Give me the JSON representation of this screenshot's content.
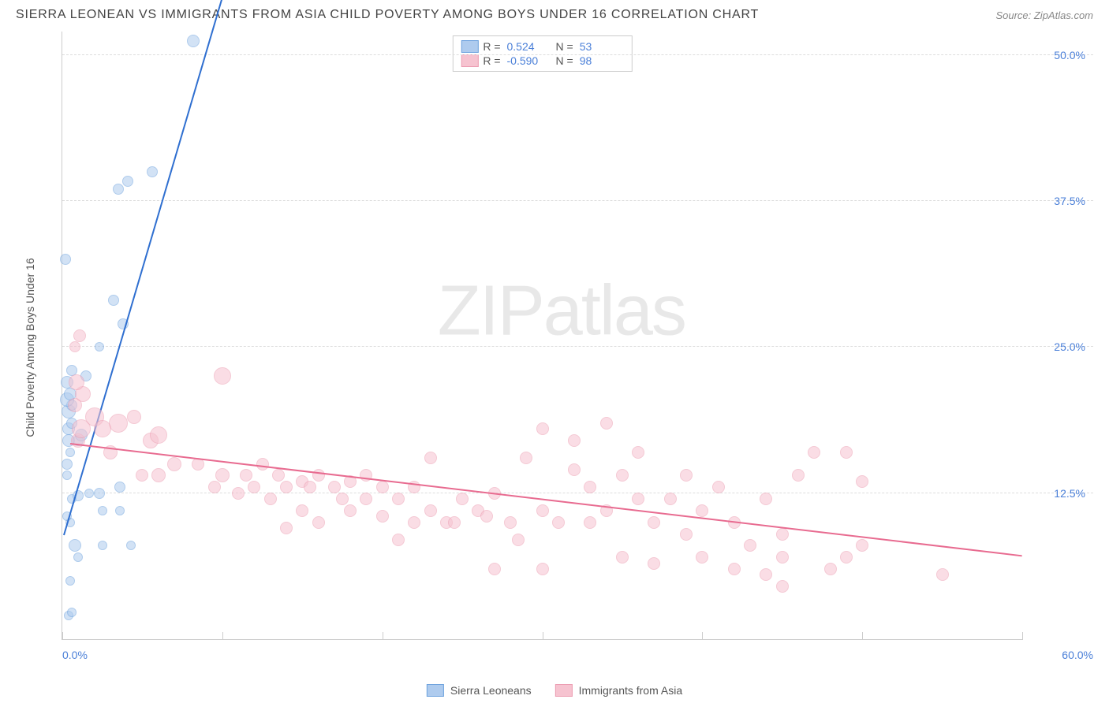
{
  "header": {
    "title": "SIERRA LEONEAN VS IMMIGRANTS FROM ASIA CHILD POVERTY AMONG BOYS UNDER 16 CORRELATION CHART",
    "source": "Source: ZipAtlas.com"
  },
  "watermark": {
    "zip": "ZIP",
    "atlas": "atlas"
  },
  "chart": {
    "type": "scatter",
    "y_axis_label": "Child Poverty Among Boys Under 16",
    "xlim": [
      0,
      60
    ],
    "ylim": [
      0,
      52
    ],
    "x_ticks": [
      0,
      10,
      20,
      30,
      40,
      50,
      60
    ],
    "y_ticks": [
      12.5,
      25.0,
      37.5,
      50.0
    ],
    "x_tick_labels": {
      "left": "0.0%",
      "right": "60.0%"
    },
    "y_tick_labels": [
      "12.5%",
      "25.0%",
      "37.5%",
      "50.0%"
    ],
    "grid_color": "#dddddd",
    "axis_color": "#cccccc",
    "background_color": "#ffffff",
    "tick_label_color": "#4a7fd8",
    "axis_label_color": "#555555"
  },
  "series": [
    {
      "name": "Sierra Leoneans",
      "fill": "#aecbee",
      "stroke": "#6fa3de",
      "fill_opacity": 0.55,
      "trend_color": "#2f6fd0",
      "trend": {
        "x1": 0.1,
        "y1": 9,
        "x2": 10,
        "y2": 55
      },
      "R": "0.524",
      "N": "53",
      "points": [
        {
          "x": 0.4,
          "y": 2,
          "r": 6
        },
        {
          "x": 0.6,
          "y": 2.3,
          "r": 6
        },
        {
          "x": 0.5,
          "y": 5,
          "r": 6
        },
        {
          "x": 1.0,
          "y": 7,
          "r": 6
        },
        {
          "x": 0.8,
          "y": 8,
          "r": 8
        },
        {
          "x": 2.5,
          "y": 8,
          "r": 6
        },
        {
          "x": 4.3,
          "y": 8,
          "r": 6
        },
        {
          "x": 0.5,
          "y": 10,
          "r": 6
        },
        {
          "x": 0.3,
          "y": 10.5,
          "r": 6
        },
        {
          "x": 2.5,
          "y": 11,
          "r": 6
        },
        {
          "x": 3.6,
          "y": 11,
          "r": 6
        },
        {
          "x": 0.6,
          "y": 12,
          "r": 6
        },
        {
          "x": 1.0,
          "y": 12.3,
          "r": 7
        },
        {
          "x": 1.7,
          "y": 12.5,
          "r": 6
        },
        {
          "x": 2.3,
          "y": 12.5,
          "r": 7
        },
        {
          "x": 3.6,
          "y": 13,
          "r": 7
        },
        {
          "x": 0.3,
          "y": 14,
          "r": 6
        },
        {
          "x": 0.3,
          "y": 15,
          "r": 7
        },
        {
          "x": 0.5,
          "y": 16,
          "r": 6
        },
        {
          "x": 0.4,
          "y": 17,
          "r": 8
        },
        {
          "x": 1.0,
          "y": 17,
          "r": 7
        },
        {
          "x": 1.2,
          "y": 17.5,
          "r": 8
        },
        {
          "x": 0.4,
          "y": 18,
          "r": 8
        },
        {
          "x": 0.6,
          "y": 18.5,
          "r": 7
        },
        {
          "x": 0.4,
          "y": 19.5,
          "r": 9
        },
        {
          "x": 0.6,
          "y": 20,
          "r": 7
        },
        {
          "x": 0.3,
          "y": 20.5,
          "r": 9
        },
        {
          "x": 0.5,
          "y": 21,
          "r": 8
        },
        {
          "x": 0.3,
          "y": 22,
          "r": 8
        },
        {
          "x": 0.6,
          "y": 23,
          "r": 7
        },
        {
          "x": 1.5,
          "y": 22.5,
          "r": 7
        },
        {
          "x": 2.3,
          "y": 25,
          "r": 6
        },
        {
          "x": 3.8,
          "y": 27,
          "r": 7
        },
        {
          "x": 3.2,
          "y": 29,
          "r": 7
        },
        {
          "x": 0.2,
          "y": 32.5,
          "r": 7
        },
        {
          "x": 3.5,
          "y": 38.5,
          "r": 7
        },
        {
          "x": 5.6,
          "y": 40,
          "r": 7
        },
        {
          "x": 4.1,
          "y": 39.2,
          "r": 7
        },
        {
          "x": 8.2,
          "y": 51.2,
          "r": 8
        }
      ]
    },
    {
      "name": "Immigrants from Asia",
      "fill": "#f6c3d0",
      "stroke": "#ec9db2",
      "fill_opacity": 0.55,
      "trend_color": "#e86b90",
      "trend": {
        "x1": 0.5,
        "y1": 16.8,
        "x2": 60,
        "y2": 7.2
      },
      "R": "-0.590",
      "N": "98",
      "points": [
        {
          "x": 1.0,
          "y": 17,
          "r": 9
        },
        {
          "x": 1.2,
          "y": 18,
          "r": 12
        },
        {
          "x": 2.0,
          "y": 19,
          "r": 12
        },
        {
          "x": 0.8,
          "y": 20,
          "r": 9
        },
        {
          "x": 1.3,
          "y": 21,
          "r": 10
        },
        {
          "x": 0.9,
          "y": 22,
          "r": 10
        },
        {
          "x": 0.8,
          "y": 25,
          "r": 7
        },
        {
          "x": 1.1,
          "y": 26,
          "r": 8
        },
        {
          "x": 3.5,
          "y": 18.5,
          "r": 12
        },
        {
          "x": 2.5,
          "y": 18,
          "r": 11
        },
        {
          "x": 4.5,
          "y": 19,
          "r": 9
        },
        {
          "x": 3.0,
          "y": 16,
          "r": 9
        },
        {
          "x": 5.5,
          "y": 17,
          "r": 10
        },
        {
          "x": 6.0,
          "y": 14,
          "r": 9
        },
        {
          "x": 6.0,
          "y": 17.5,
          "r": 11
        },
        {
          "x": 7.0,
          "y": 15,
          "r": 9
        },
        {
          "x": 5.0,
          "y": 14,
          "r": 8
        },
        {
          "x": 8.5,
          "y": 15,
          "r": 8
        },
        {
          "x": 9.5,
          "y": 13,
          "r": 8
        },
        {
          "x": 10,
          "y": 14,
          "r": 9
        },
        {
          "x": 10,
          "y": 22.5,
          "r": 11
        },
        {
          "x": 11,
          "y": 12.5,
          "r": 8
        },
        {
          "x": 11.5,
          "y": 14,
          "r": 8
        },
        {
          "x": 12,
          "y": 13,
          "r": 8
        },
        {
          "x": 12.5,
          "y": 15,
          "r": 8
        },
        {
          "x": 13,
          "y": 12,
          "r": 8
        },
        {
          "x": 13.5,
          "y": 14,
          "r": 8
        },
        {
          "x": 14,
          "y": 9.5,
          "r": 8
        },
        {
          "x": 14,
          "y": 13,
          "r": 8
        },
        {
          "x": 15,
          "y": 13.5,
          "r": 8
        },
        {
          "x": 15,
          "y": 11,
          "r": 8
        },
        {
          "x": 15.5,
          "y": 13,
          "r": 8
        },
        {
          "x": 16,
          "y": 14,
          "r": 8
        },
        {
          "x": 16,
          "y": 10,
          "r": 8
        },
        {
          "x": 17,
          "y": 13,
          "r": 8
        },
        {
          "x": 17.5,
          "y": 12,
          "r": 8
        },
        {
          "x": 18,
          "y": 13.5,
          "r": 8
        },
        {
          "x": 18,
          "y": 11,
          "r": 8
        },
        {
          "x": 19,
          "y": 12,
          "r": 8
        },
        {
          "x": 19,
          "y": 14,
          "r": 8
        },
        {
          "x": 20,
          "y": 10.5,
          "r": 8
        },
        {
          "x": 20,
          "y": 13,
          "r": 8
        },
        {
          "x": 21,
          "y": 12,
          "r": 8
        },
        {
          "x": 21,
          "y": 8.5,
          "r": 8
        },
        {
          "x": 22,
          "y": 13,
          "r": 8
        },
        {
          "x": 22,
          "y": 10,
          "r": 8
        },
        {
          "x": 23,
          "y": 11,
          "r": 8
        },
        {
          "x": 23,
          "y": 15.5,
          "r": 8
        },
        {
          "x": 24,
          "y": 10,
          "r": 8
        },
        {
          "x": 24.5,
          "y": 10,
          "r": 8
        },
        {
          "x": 25,
          "y": 12,
          "r": 8
        },
        {
          "x": 26,
          "y": 11,
          "r": 8
        },
        {
          "x": 26.5,
          "y": 10.5,
          "r": 8
        },
        {
          "x": 27,
          "y": 12.5,
          "r": 8
        },
        {
          "x": 27,
          "y": 6,
          "r": 8
        },
        {
          "x": 28,
          "y": 10,
          "r": 8
        },
        {
          "x": 28.5,
          "y": 8.5,
          "r": 8
        },
        {
          "x": 29,
          "y": 15.5,
          "r": 8
        },
        {
          "x": 30,
          "y": 11,
          "r": 8
        },
        {
          "x": 30,
          "y": 18,
          "r": 8
        },
        {
          "x": 30,
          "y": 6,
          "r": 8
        },
        {
          "x": 31,
          "y": 10,
          "r": 8
        },
        {
          "x": 32,
          "y": 14.5,
          "r": 8
        },
        {
          "x": 32,
          "y": 17,
          "r": 8
        },
        {
          "x": 33,
          "y": 10,
          "r": 8
        },
        {
          "x": 33,
          "y": 13,
          "r": 8
        },
        {
          "x": 34,
          "y": 18.5,
          "r": 8
        },
        {
          "x": 34,
          "y": 11,
          "r": 8
        },
        {
          "x": 35,
          "y": 14,
          "r": 8
        },
        {
          "x": 35,
          "y": 7,
          "r": 8
        },
        {
          "x": 36,
          "y": 12,
          "r": 8
        },
        {
          "x": 36,
          "y": 16,
          "r": 8
        },
        {
          "x": 37,
          "y": 10,
          "r": 8
        },
        {
          "x": 37,
          "y": 6.5,
          "r": 8
        },
        {
          "x": 38,
          "y": 12,
          "r": 8
        },
        {
          "x": 39,
          "y": 9,
          "r": 8
        },
        {
          "x": 39,
          "y": 14,
          "r": 8
        },
        {
          "x": 40,
          "y": 11,
          "r": 8
        },
        {
          "x": 40,
          "y": 7,
          "r": 8
        },
        {
          "x": 41,
          "y": 13,
          "r": 8
        },
        {
          "x": 42,
          "y": 10,
          "r": 8
        },
        {
          "x": 42,
          "y": 6,
          "r": 8
        },
        {
          "x": 43,
          "y": 8,
          "r": 8
        },
        {
          "x": 44,
          "y": 12,
          "r": 8
        },
        {
          "x": 44,
          "y": 5.5,
          "r": 8
        },
        {
          "x": 45,
          "y": 9,
          "r": 8
        },
        {
          "x": 45,
          "y": 7,
          "r": 8
        },
        {
          "x": 45,
          "y": 4.5,
          "r": 8
        },
        {
          "x": 46,
          "y": 14,
          "r": 8
        },
        {
          "x": 47,
          "y": 16,
          "r": 8
        },
        {
          "x": 48,
          "y": 6,
          "r": 8
        },
        {
          "x": 49,
          "y": 7,
          "r": 8
        },
        {
          "x": 49,
          "y": 16,
          "r": 8
        },
        {
          "x": 50,
          "y": 8,
          "r": 8
        },
        {
          "x": 50,
          "y": 13.5,
          "r": 8
        },
        {
          "x": 55,
          "y": 5.5,
          "r": 8
        }
      ]
    }
  ],
  "legend_top": {
    "r_label": "R =",
    "n_label": "N ="
  },
  "legend_bottom": {
    "items": [
      "Sierra Leoneans",
      "Immigrants from Asia"
    ]
  }
}
